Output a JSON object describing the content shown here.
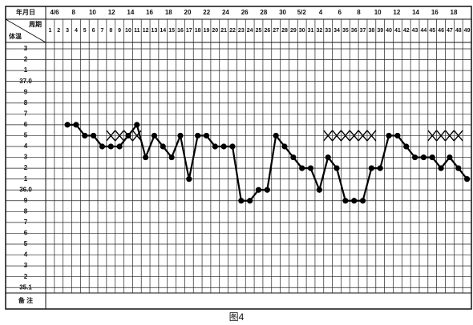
{
  "chart_data": {
    "type": "line",
    "header_label": "年月日",
    "cycle_label": "周期",
    "temp_label": "体温",
    "remarks_label": "备 注",
    "caption": "图4",
    "dates": [
      "4/6",
      "8",
      "10",
      "12",
      "14",
      "16",
      "18",
      "20",
      "22",
      "24",
      "26",
      "28",
      "30",
      "5/2",
      "4",
      "6",
      "8",
      "10",
      "12",
      "14",
      "16",
      "18"
    ],
    "categories": [
      "1",
      "2",
      "3",
      "4",
      "5",
      "6",
      "7",
      "8",
      "9",
      "10",
      "11",
      "12",
      "13",
      "14",
      "15",
      "16",
      "17",
      "18",
      "19",
      "20",
      "21",
      "22",
      "23",
      "24",
      "25",
      "26",
      "27",
      "28",
      "29",
      "30",
      "31",
      "32",
      "33",
      "34",
      "35",
      "36",
      "37",
      "38",
      "39",
      "40",
      "41",
      "42",
      "43",
      "44",
      "45",
      "46",
      "47",
      "48",
      "49"
    ],
    "values": [
      null,
      null,
      36.6,
      36.6,
      36.5,
      36.5,
      36.4,
      36.4,
      36.4,
      36.5,
      36.6,
      36.3,
      36.5,
      36.4,
      36.3,
      36.5,
      36.1,
      36.5,
      36.5,
      36.4,
      36.4,
      36.4,
      35.9,
      35.9,
      36.0,
      36.0,
      36.5,
      36.4,
      36.3,
      36.2,
      36.2,
      36.0,
      36.3,
      36.2,
      35.9,
      35.9,
      35.9,
      36.2,
      36.2,
      36.5,
      36.5,
      36.4,
      36.3,
      36.3,
      36.3,
      36.2,
      36.3,
      36.2,
      36.1
    ],
    "color": "#000000",
    "cross_values": [
      null,
      null,
      null,
      null,
      null,
      null,
      null,
      36.5,
      36.5,
      36.5,
      36.5,
      null,
      null,
      null,
      null,
      null,
      null,
      null,
      null,
      null,
      null,
      null,
      null,
      null,
      null,
      null,
      null,
      null,
      null,
      null,
      null,
      null,
      36.5,
      36.5,
      36.5,
      36.5,
      36.5,
      36.5,
      null,
      null,
      null,
      null,
      null,
      null,
      36.5,
      36.5,
      36.5,
      36.5,
      null
    ],
    "ylim": [
      35.05,
      37.35
    ],
    "yticks": [
      {
        "value": 37.3,
        "label": "3"
      },
      {
        "value": 37.2,
        "label": "2"
      },
      {
        "value": 37.1,
        "label": "1"
      },
      {
        "value": 37,
        "label": "37.0"
      },
      {
        "value": 36.9,
        "label": "9"
      },
      {
        "value": 36.8,
        "label": "8"
      },
      {
        "value": 36.7,
        "label": "7"
      },
      {
        "value": 36.6,
        "label": "6"
      },
      {
        "value": 36.5,
        "label": "5"
      },
      {
        "value": 36.4,
        "label": "4"
      },
      {
        "value": 36.3,
        "label": "3"
      },
      {
        "value": 36.2,
        "label": "2"
      },
      {
        "value": 36.1,
        "label": "1"
      },
      {
        "value": 36,
        "label": "36.0"
      },
      {
        "value": 35.9,
        "label": "9"
      },
      {
        "value": 35.8,
        "label": "8"
      },
      {
        "value": 35.7,
        "label": "7"
      },
      {
        "value": 35.6,
        "label": "6"
      },
      {
        "value": 35.5,
        "label": "5"
      },
      {
        "value": 35.4,
        "label": "4"
      },
      {
        "value": 35.3,
        "label": "3"
      },
      {
        "value": 35.2,
        "label": "2"
      },
      35.1
    ],
    "grid": true
  }
}
